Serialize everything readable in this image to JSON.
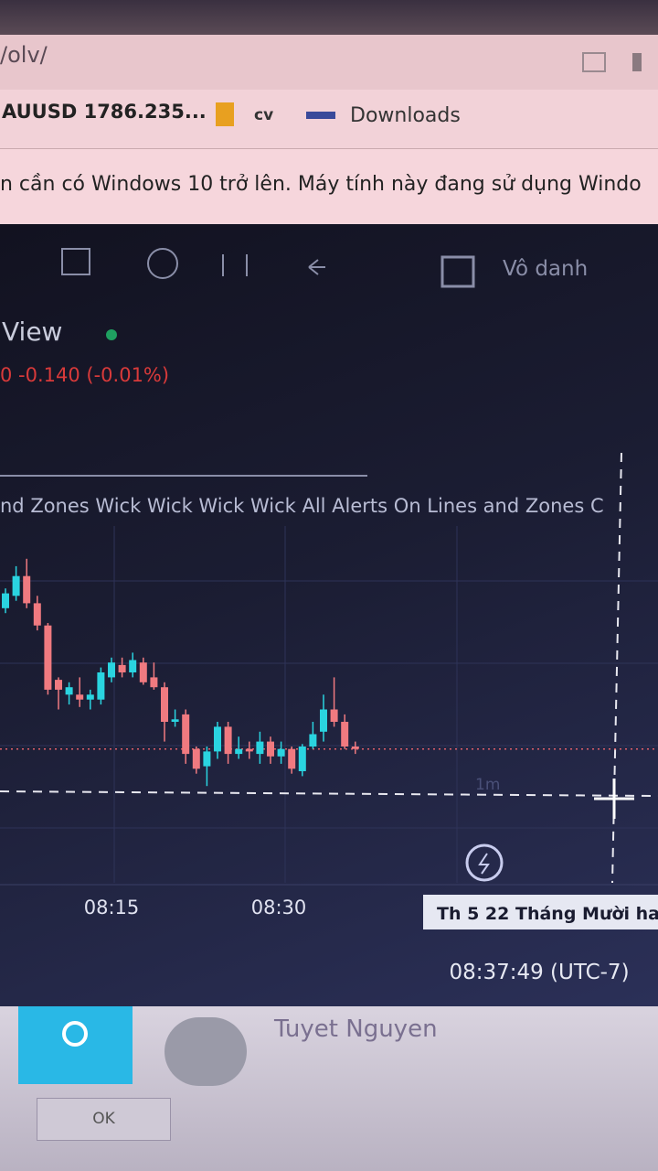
{
  "browser": {
    "url": "/olv/",
    "bookmarks": [
      "AUUSD 1786.235...",
      "cv",
      "Downloads"
    ],
    "notice": "n cần có Windows 10 trở lên. Máy tính này đang sử dụng Windo"
  },
  "toolbar": {
    "user": "Vô danh"
  },
  "chart_header": {
    "title": "View",
    "change": "0 -0.140 (-0.01%)",
    "study": "nd Zones Wick Wick Wick Wick All Alerts On Lines and Zones C"
  },
  "time_axis": {
    "labels": [
      "08:15",
      "08:30"
    ],
    "cursor_date": "Th 5 22 Tháng Mười ha",
    "clock": "08:37:49 (UTC-7)"
  },
  "chart_data": {
    "type": "candlestick",
    "ylim": [
      0,
      100
    ],
    "interval": "1m",
    "up_color": "#2ad4e0",
    "down_color": "#f07a80",
    "price_line": 19,
    "open": [
      76,
      81,
      89,
      78,
      69,
      47,
      41,
      41,
      39,
      39,
      48,
      53,
      50,
      54,
      48,
      44,
      30,
      33,
      19,
      12,
      18,
      28,
      17,
      19,
      17,
      22,
      16,
      19,
      10,
      20,
      26,
      35,
      30,
      20
    ],
    "high": [
      84,
      93,
      96,
      81,
      70,
      48,
      46,
      48,
      43,
      52,
      56,
      56,
      58,
      56,
      54,
      46,
      35,
      35,
      20,
      20,
      30,
      30,
      24,
      22,
      26,
      24,
      22,
      20,
      21,
      30,
      41,
      48,
      33,
      22
    ],
    "low": [
      74,
      79,
      76,
      67,
      41,
      35,
      37,
      36,
      35,
      37,
      46,
      48,
      48,
      45,
      43,
      22,
      28,
      13,
      9,
      4,
      15,
      13,
      15,
      15,
      13,
      13,
      13,
      9,
      8,
      19,
      22,
      28,
      19,
      17
    ],
    "close": [
      82,
      89,
      78,
      69,
      43,
      43,
      44,
      39,
      41,
      50,
      54,
      50,
      55,
      46,
      44,
      30,
      31,
      17,
      11,
      18,
      28,
      17,
      19,
      18,
      22,
      16,
      19,
      11,
      20,
      25,
      35,
      30,
      20,
      19
    ]
  },
  "taskbar": {
    "name": "Tuyet Nguyen",
    "button": "OK"
  }
}
